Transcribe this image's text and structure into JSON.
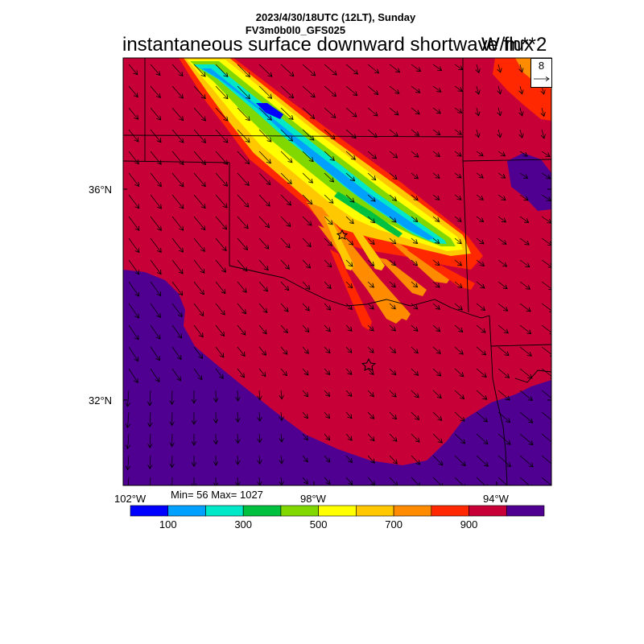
{
  "header": {
    "date_line": "2023/4/30/18UTC (12LT), Sunday",
    "model": "FV3m0b0l0_GFS025",
    "title": "instantaneous surface downward shortwave flux",
    "units": "W/m**2"
  },
  "map": {
    "region": "Southern Plains (Oklahoma / Texas)",
    "lat_labels": [
      "36°N",
      "32°N"
    ],
    "lon_labels": [
      "102°W",
      "98°W",
      "94°W"
    ]
  },
  "stats": {
    "label": "Min= 56 Max= 1027",
    "min": 56,
    "max": 1027
  },
  "vector_reference": {
    "value": "8"
  },
  "colorbar": {
    "colors": [
      "#0000ff",
      "#00a0ff",
      "#00e8c8",
      "#00c040",
      "#80d800",
      "#ffff00",
      "#ffc800",
      "#ff8c00",
      "#ff2800",
      "#c80038",
      "#500090"
    ],
    "tick_labels": [
      "100",
      "300",
      "500",
      "700",
      "900"
    ]
  }
}
